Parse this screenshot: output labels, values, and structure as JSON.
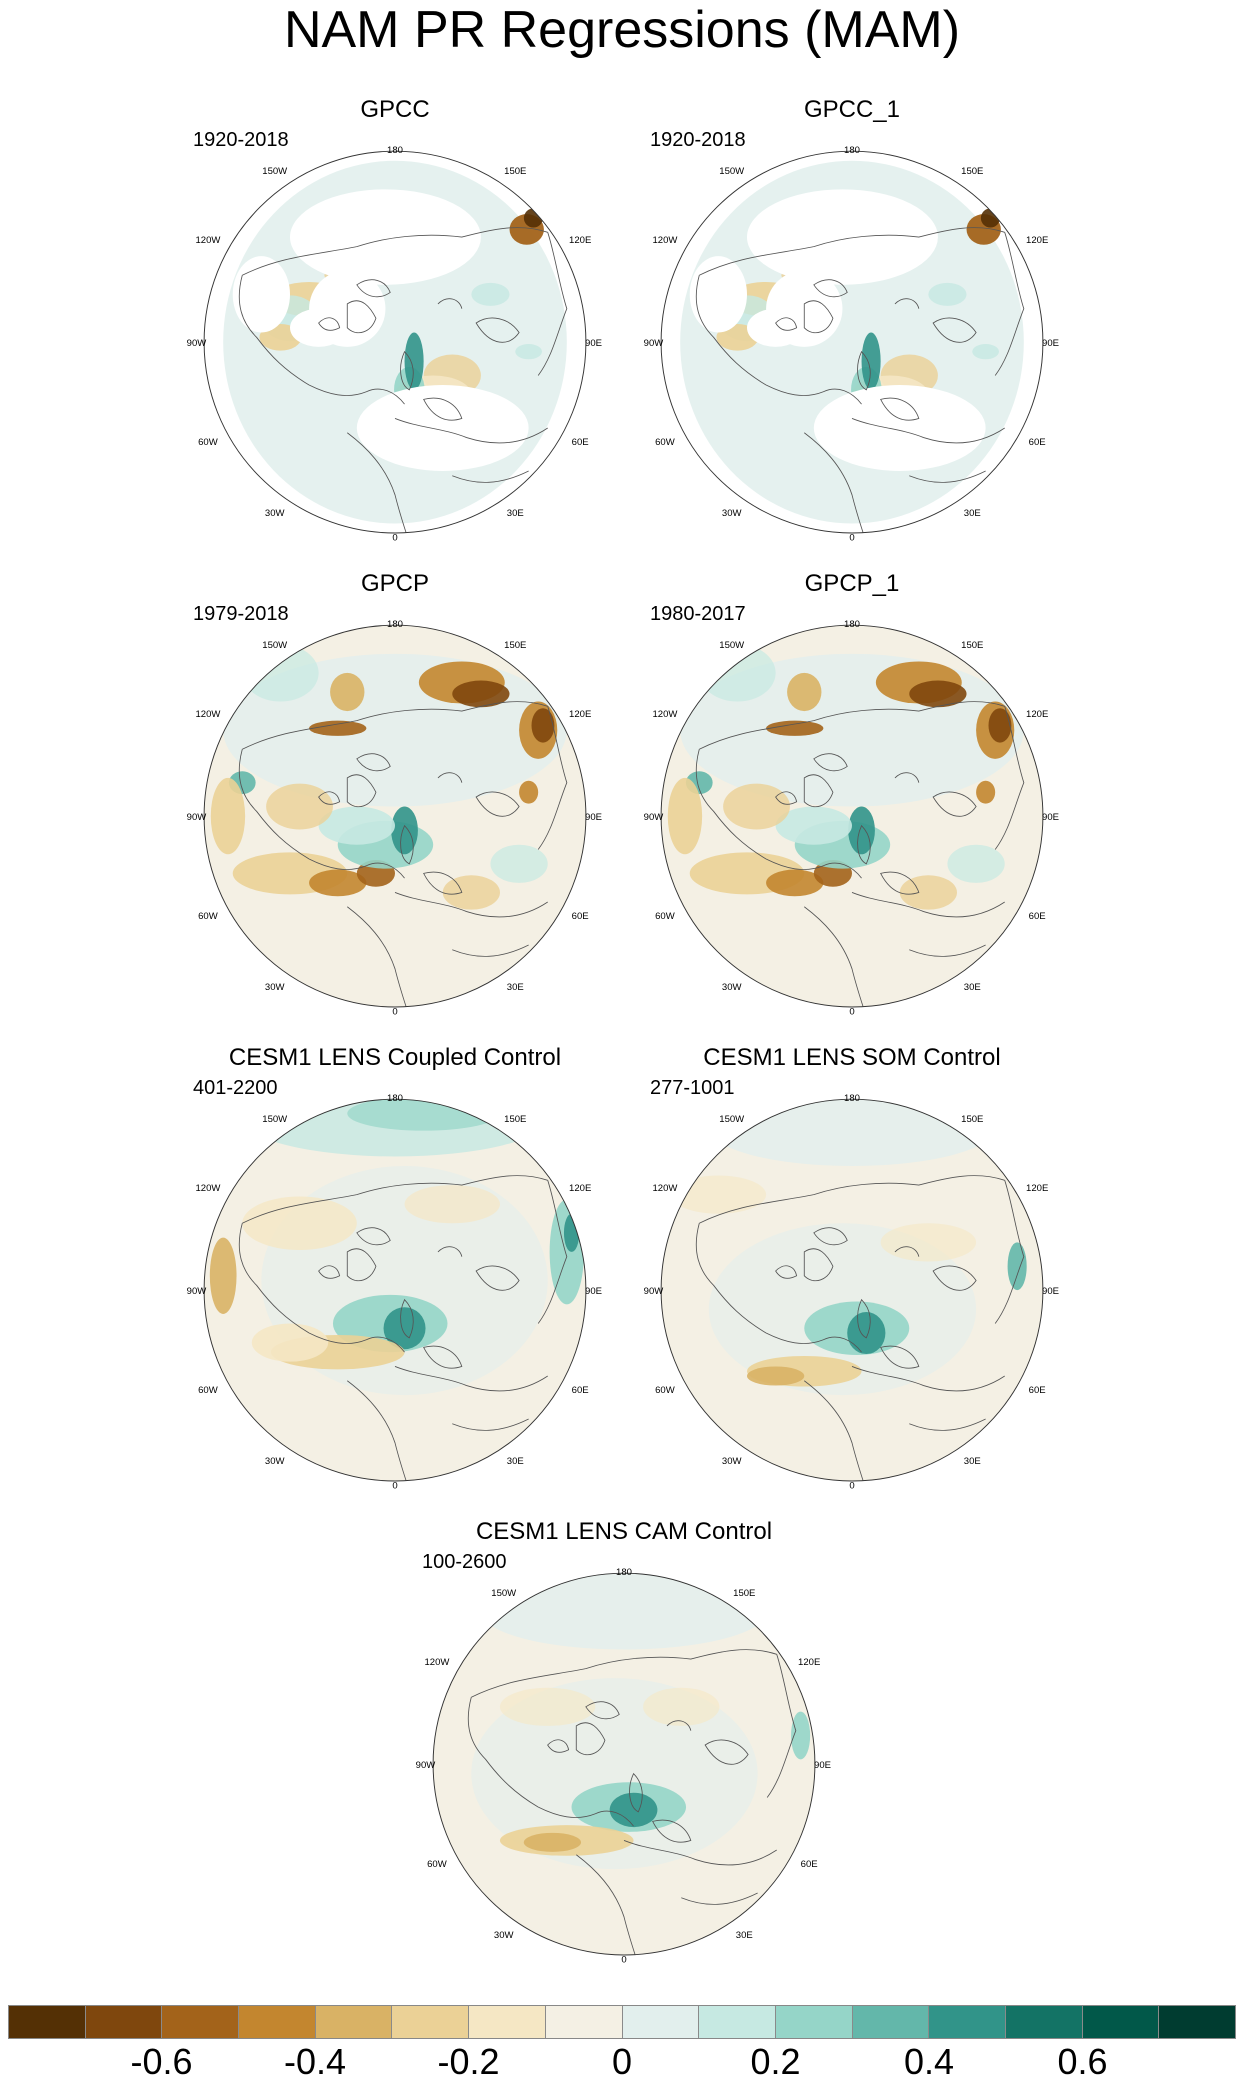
{
  "title": "NAM PR Regressions (MAM)",
  "longitude_labels": {
    "top": "180",
    "top_left": "150W",
    "top_right": "150E",
    "upper_left": "120W",
    "upper_right": "120E",
    "left": "90W",
    "right": "90E",
    "lower_left": "60W",
    "lower_right": "60E",
    "bottom_left": "30W",
    "bottom_right": "30E",
    "bottom": "0"
  },
  "panels": [
    {
      "title": "GPCC",
      "years": "1920-2018",
      "pattern": "gpcc"
    },
    {
      "title": "GPCC_1",
      "years": "1920-2018",
      "pattern": "gpcc"
    },
    {
      "title": "GPCP",
      "years": "1979-2018",
      "pattern": "gpcp"
    },
    {
      "title": "GPCP_1",
      "years": "1980-2017",
      "pattern": "gpcp"
    },
    {
      "title": "CESM1 LENS Coupled Control",
      "years": "401-2200",
      "pattern": "coupled"
    },
    {
      "title": "CESM1 LENS SOM Control",
      "years": "277-1001",
      "pattern": "som"
    },
    {
      "title": "CESM1 LENS CAM Control",
      "years": "100-2600",
      "pattern": "cam"
    }
  ],
  "colorbar": {
    "colors": [
      "#543005",
      "#7f470d",
      "#a3631a",
      "#c3862f",
      "#d9b265",
      "#ebd196",
      "#f5e7c4",
      "#f4f0e4",
      "#e2efed",
      "#c6e9e2",
      "#95d5c8",
      "#63b7aa",
      "#319489",
      "#137365",
      "#015849",
      "#003c30"
    ],
    "tick_labels": [
      {
        "label": "-0.6",
        "pos": 2
      },
      {
        "label": "-0.4",
        "pos": 4
      },
      {
        "label": "-0.2",
        "pos": 6
      },
      {
        "label": "0",
        "pos": 8
      },
      {
        "label": "0.2",
        "pos": 10
      },
      {
        "label": "0.4",
        "pos": 12
      },
      {
        "label": "0.6",
        "pos": 14
      }
    ]
  }
}
